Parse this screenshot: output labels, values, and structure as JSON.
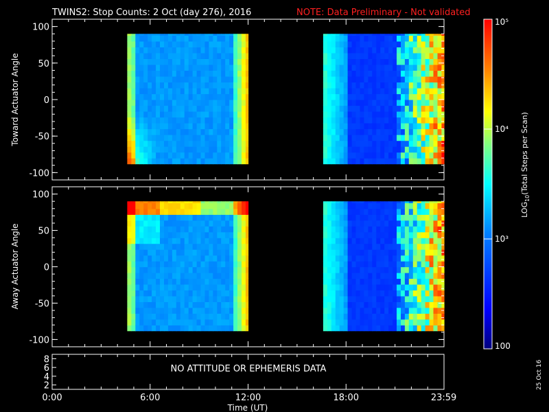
{
  "title": {
    "main": "TWINS2: Stop Counts:  2 Oct (day 276), 2016",
    "note": "NOTE: Data Preliminary - Not validated",
    "note_color": "#ff2020"
  },
  "side_date": "25 Oct 16",
  "no_data_message": "NO ATTITUDE OR EPHEMERIS DATA",
  "colorbar": {
    "label": "LOG10(Total Steps per Scan)",
    "label_parts": {
      "pre": "LOG",
      "sub": "10",
      "post": "(Total Steps per Scan)"
    },
    "ticks": [
      "100",
      "10³",
      "10⁴",
      "10⁵"
    ],
    "tick_values": [
      100,
      1000,
      10000,
      100000
    ],
    "range": [
      100,
      100000
    ],
    "scale": "log"
  },
  "chart_data": [
    {
      "type": "heatmap",
      "name": "toward",
      "ylabel": "Toward Actuator Angle",
      "yticks": [
        "100",
        "50",
        "0",
        "-50",
        "-100"
      ],
      "ylim": [
        -110,
        110
      ],
      "xlim": [
        0,
        24
      ],
      "data_intervals_hours": [
        [
          4.6,
          12.0
        ],
        [
          16.6,
          24.0
        ]
      ],
      "angle_range": [
        -88,
        90
      ]
    },
    {
      "type": "heatmap",
      "name": "away",
      "ylabel": "Away Actuator Angle",
      "yticks": [
        "100",
        "50",
        "0",
        "-50",
        "-100"
      ],
      "ylim": [
        -110,
        110
      ],
      "xlim": [
        0,
        24
      ],
      "data_intervals_hours": [
        [
          4.6,
          12.0
        ],
        [
          16.6,
          24.0
        ]
      ],
      "angle_range": [
        -88,
        90
      ]
    },
    {
      "type": "line",
      "name": "ephemeris",
      "yticks": [
        "8",
        "6",
        "4",
        "2"
      ],
      "ylim": [
        1,
        9
      ],
      "xticks": [
        "0:00",
        "6:00",
        "12:00",
        "18:00",
        "23:59"
      ],
      "xlabel": "Time (UT)"
    }
  ]
}
